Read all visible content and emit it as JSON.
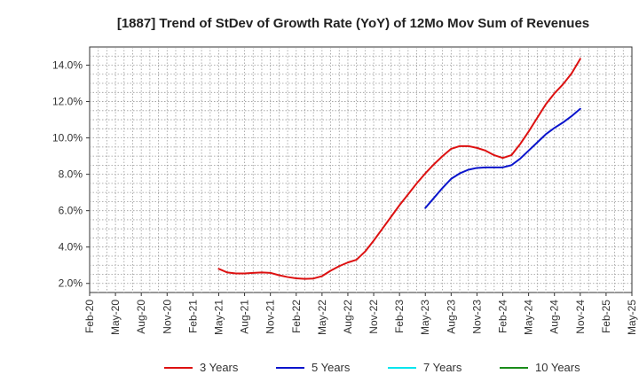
{
  "chart_data": {
    "type": "line",
    "title": "[1887]  Trend of StDev of Growth Rate (YoY) of 12Mo Mov Sum of Revenues",
    "xlabel": "",
    "ylabel": "",
    "ylim": [
      1.5,
      15.0
    ],
    "yticks": [
      2.0,
      4.0,
      6.0,
      8.0,
      10.0,
      12.0,
      14.0
    ],
    "ytick_labels": [
      "2.0%",
      "4.0%",
      "6.0%",
      "8.0%",
      "10.0%",
      "12.0%",
      "14.0%"
    ],
    "xtick_labels": [
      "Feb-20",
      "May-20",
      "Aug-20",
      "Nov-20",
      "Feb-21",
      "May-21",
      "Aug-21",
      "Nov-21",
      "Feb-22",
      "May-22",
      "Aug-22",
      "Nov-22",
      "Feb-23",
      "May-23",
      "Aug-23",
      "Nov-23",
      "Feb-24",
      "May-24",
      "Aug-24",
      "Nov-24",
      "Feb-25",
      "May-25"
    ],
    "grid": true,
    "legend_position": "bottom",
    "series": [
      {
        "name": "3 Years",
        "color": "#dd1111",
        "start_month_index": 15,
        "values": [
          2.8,
          2.6,
          2.55,
          2.55,
          2.58,
          2.6,
          2.58,
          2.45,
          2.35,
          2.28,
          2.25,
          2.27,
          2.4,
          2.7,
          2.95,
          3.15,
          3.3,
          3.75,
          4.35,
          5.0,
          5.65,
          6.3,
          6.9,
          7.5,
          8.05,
          8.55,
          9.0,
          9.4,
          9.55,
          9.55,
          9.45,
          9.3,
          9.05,
          8.9,
          9.05,
          9.65,
          10.35,
          11.1,
          11.85,
          12.45,
          12.95,
          13.55,
          14.35
        ]
      },
      {
        "name": "5 Years",
        "color": "#0a14cc",
        "start_month_index": 39,
        "values": [
          6.15,
          6.7,
          7.25,
          7.75,
          8.05,
          8.25,
          8.35,
          8.38,
          8.38,
          8.38,
          8.5,
          8.85,
          9.3,
          9.75,
          10.2,
          10.55,
          10.85,
          11.2,
          11.6
        ]
      },
      {
        "name": "7 Years",
        "color": "#00e5ee",
        "start_month_index": 0,
        "values": []
      },
      {
        "name": "10 Years",
        "color": "#1a8c1a",
        "start_month_index": 0,
        "values": []
      }
    ]
  }
}
